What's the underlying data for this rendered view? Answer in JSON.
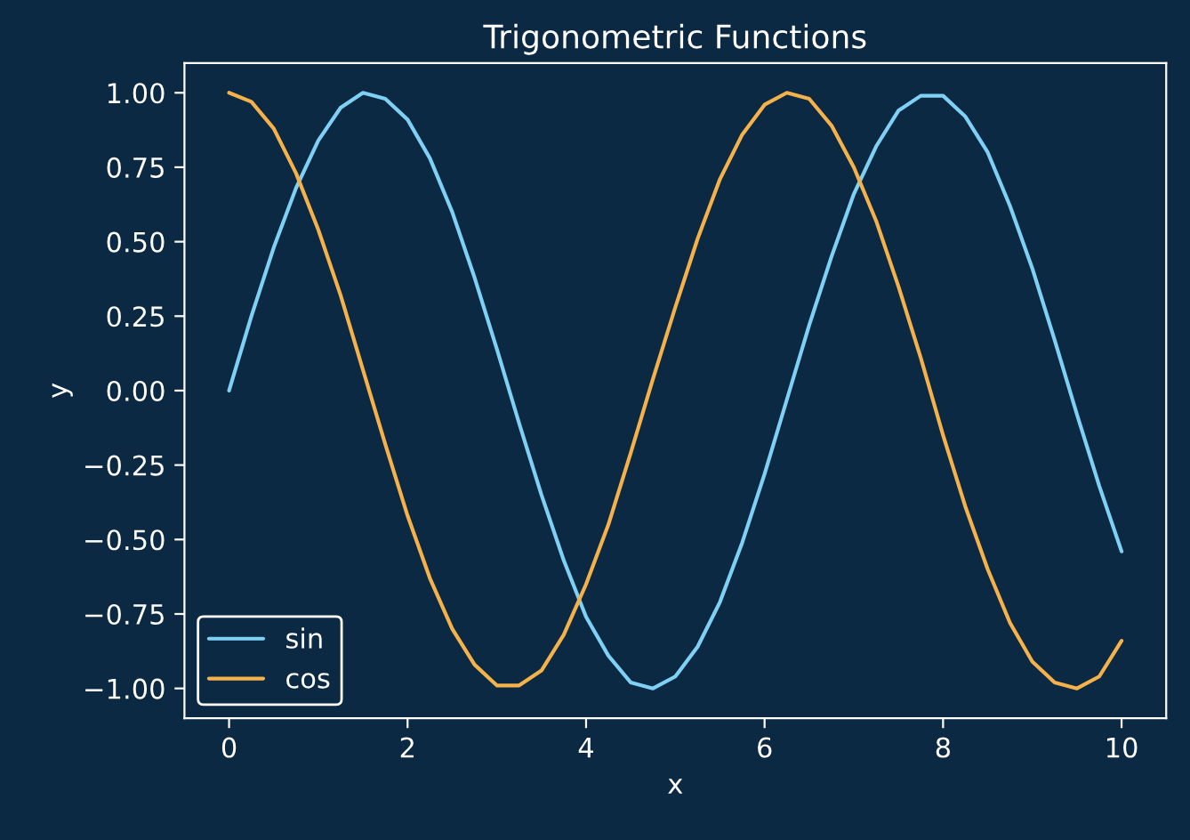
{
  "chart_data": {
    "type": "line",
    "title": "Trigonometric Functions",
    "xlabel": "x",
    "ylabel": "y",
    "x": [
      0,
      0.25,
      0.5,
      0.75,
      1,
      1.25,
      1.5,
      1.75,
      2,
      2.25,
      2.5,
      2.75,
      3,
      3.25,
      3.5,
      3.75,
      4,
      4.25,
      4.5,
      4.75,
      5,
      5.25,
      5.5,
      5.75,
      6,
      6.25,
      6.5,
      6.75,
      7,
      7.25,
      7.5,
      7.75,
      8,
      8.25,
      8.5,
      8.75,
      9,
      9.25,
      9.5,
      9.75,
      10
    ],
    "series": [
      {
        "name": "sin",
        "color": "#7fd0f5",
        "values": [
          0,
          0.25,
          0.48,
          0.68,
          0.84,
          0.95,
          1.0,
          0.98,
          0.91,
          0.78,
          0.6,
          0.38,
          0.14,
          -0.11,
          -0.35,
          -0.57,
          -0.76,
          -0.89,
          -0.98,
          -1.0,
          -0.96,
          -0.86,
          -0.71,
          -0.51,
          -0.28,
          -0.03,
          0.22,
          0.45,
          0.66,
          0.82,
          0.94,
          0.99,
          0.99,
          0.92,
          0.8,
          0.62,
          0.41,
          0.17,
          -0.08,
          -0.32,
          -0.54
        ]
      },
      {
        "name": "cos",
        "color": "#f5b24a",
        "values": [
          1.0,
          0.97,
          0.88,
          0.73,
          0.54,
          0.32,
          0.07,
          -0.18,
          -0.42,
          -0.63,
          -0.8,
          -0.92,
          -0.99,
          -0.99,
          -0.94,
          -0.82,
          -0.65,
          -0.45,
          -0.21,
          0.04,
          0.28,
          0.51,
          0.71,
          0.86,
          0.96,
          1.0,
          0.98,
          0.89,
          0.75,
          0.57,
          0.35,
          0.11,
          -0.15,
          -0.39,
          -0.6,
          -0.78,
          -0.91,
          -0.98,
          -1.0,
          -0.96,
          -0.84
        ]
      }
    ],
    "xlim": [
      -0.5,
      10.5
    ],
    "xticks": [
      0,
      2,
      4,
      6,
      8,
      10
    ],
    "ylim": [
      -1.1,
      1.1
    ],
    "yticks": [
      {
        "value": -1,
        "label": "−1.00"
      },
      {
        "value": -0.75,
        "label": "−0.75"
      },
      {
        "value": -0.5,
        "label": "−0.50"
      },
      {
        "value": -0.25,
        "label": "−0.25"
      },
      {
        "value": 0,
        "label": "0.00"
      },
      {
        "value": 0.25,
        "label": "0.25"
      },
      {
        "value": 0.5,
        "label": "0.50"
      },
      {
        "value": 0.75,
        "label": "0.75"
      },
      {
        "value": 1,
        "label": "1.00"
      }
    ],
    "grid": false,
    "legend": "lower left",
    "marker": "none",
    "line_style": "solid"
  }
}
